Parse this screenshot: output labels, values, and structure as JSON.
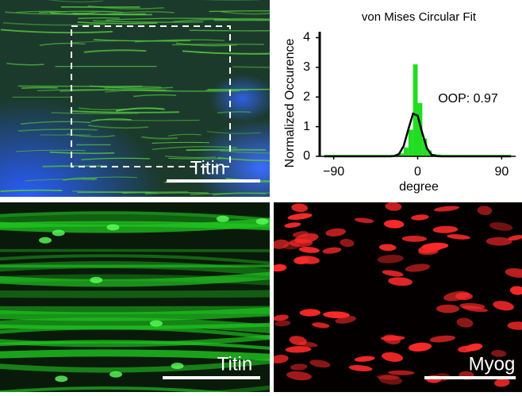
{
  "panels": [
    {
      "label": "Titin"
    },
    {
      "label": "Titin"
    },
    {
      "label": "Myog"
    }
  ],
  "chart_data": {
    "type": "histogram",
    "title": "von Mises Circular Fit",
    "y_label": "Normalized Occurence",
    "x_label": "degree",
    "annotation": "OOP: 0.97",
    "bins": [
      -100,
      -95,
      -90,
      -85,
      -80,
      -75,
      -70,
      -65,
      -60,
      -55,
      -50,
      -45,
      -40,
      -35,
      -30,
      -25,
      -20,
      -15,
      -10,
      -5,
      0,
      5,
      10,
      15,
      20,
      25,
      30,
      35,
      40,
      45,
      50,
      55,
      60,
      65,
      70,
      75,
      80,
      85,
      90,
      95,
      100
    ],
    "counts": [
      0.05,
      0.05,
      0.05,
      0.05,
      0.05,
      0.05,
      0.05,
      0.05,
      0.05,
      0.05,
      0.05,
      0.05,
      0.05,
      0.05,
      0.05,
      0.06,
      0.1,
      0.3,
      0.9,
      3.1,
      1.8,
      0.6,
      0.2,
      0.08,
      0.06,
      0.05,
      0.05,
      0.05,
      0.05,
      0.05,
      0.05,
      0.05,
      0.05,
      0.05,
      0.05,
      0.05,
      0.05,
      0.05,
      0.05,
      0.05
    ],
    "color": "#22dd22",
    "fit": {
      "x": [
        -100,
        -95,
        -90,
        -85,
        -80,
        -75,
        -70,
        -65,
        -60,
        -55,
        -50,
        -45,
        -40,
        -35,
        -30,
        -25,
        -20,
        -15,
        -10,
        -5,
        0,
        5,
        10,
        15,
        20,
        25,
        30,
        35,
        40,
        45,
        50,
        55,
        60,
        65,
        70,
        75,
        80,
        85,
        90,
        95,
        100
      ],
      "values": [
        0,
        0,
        0,
        0,
        0,
        0,
        0,
        0,
        0,
        0,
        0,
        0,
        0,
        0,
        0,
        0.01,
        0.08,
        0.35,
        0.91,
        1.44,
        1.37,
        0.78,
        0.27,
        0.05,
        0.01,
        0,
        0,
        0,
        0,
        0,
        0,
        0,
        0,
        0,
        0,
        0,
        0,
        0,
        0,
        0,
        0
      ],
      "color": "#000000"
    },
    "xlim": [
      -105,
      105
    ],
    "ylim": [
      0,
      4.2
    ],
    "xticks": [
      {
        "value": -90,
        "label": "−90"
      },
      0,
      90
    ],
    "yticks": [
      0,
      1,
      2,
      3,
      4
    ]
  }
}
